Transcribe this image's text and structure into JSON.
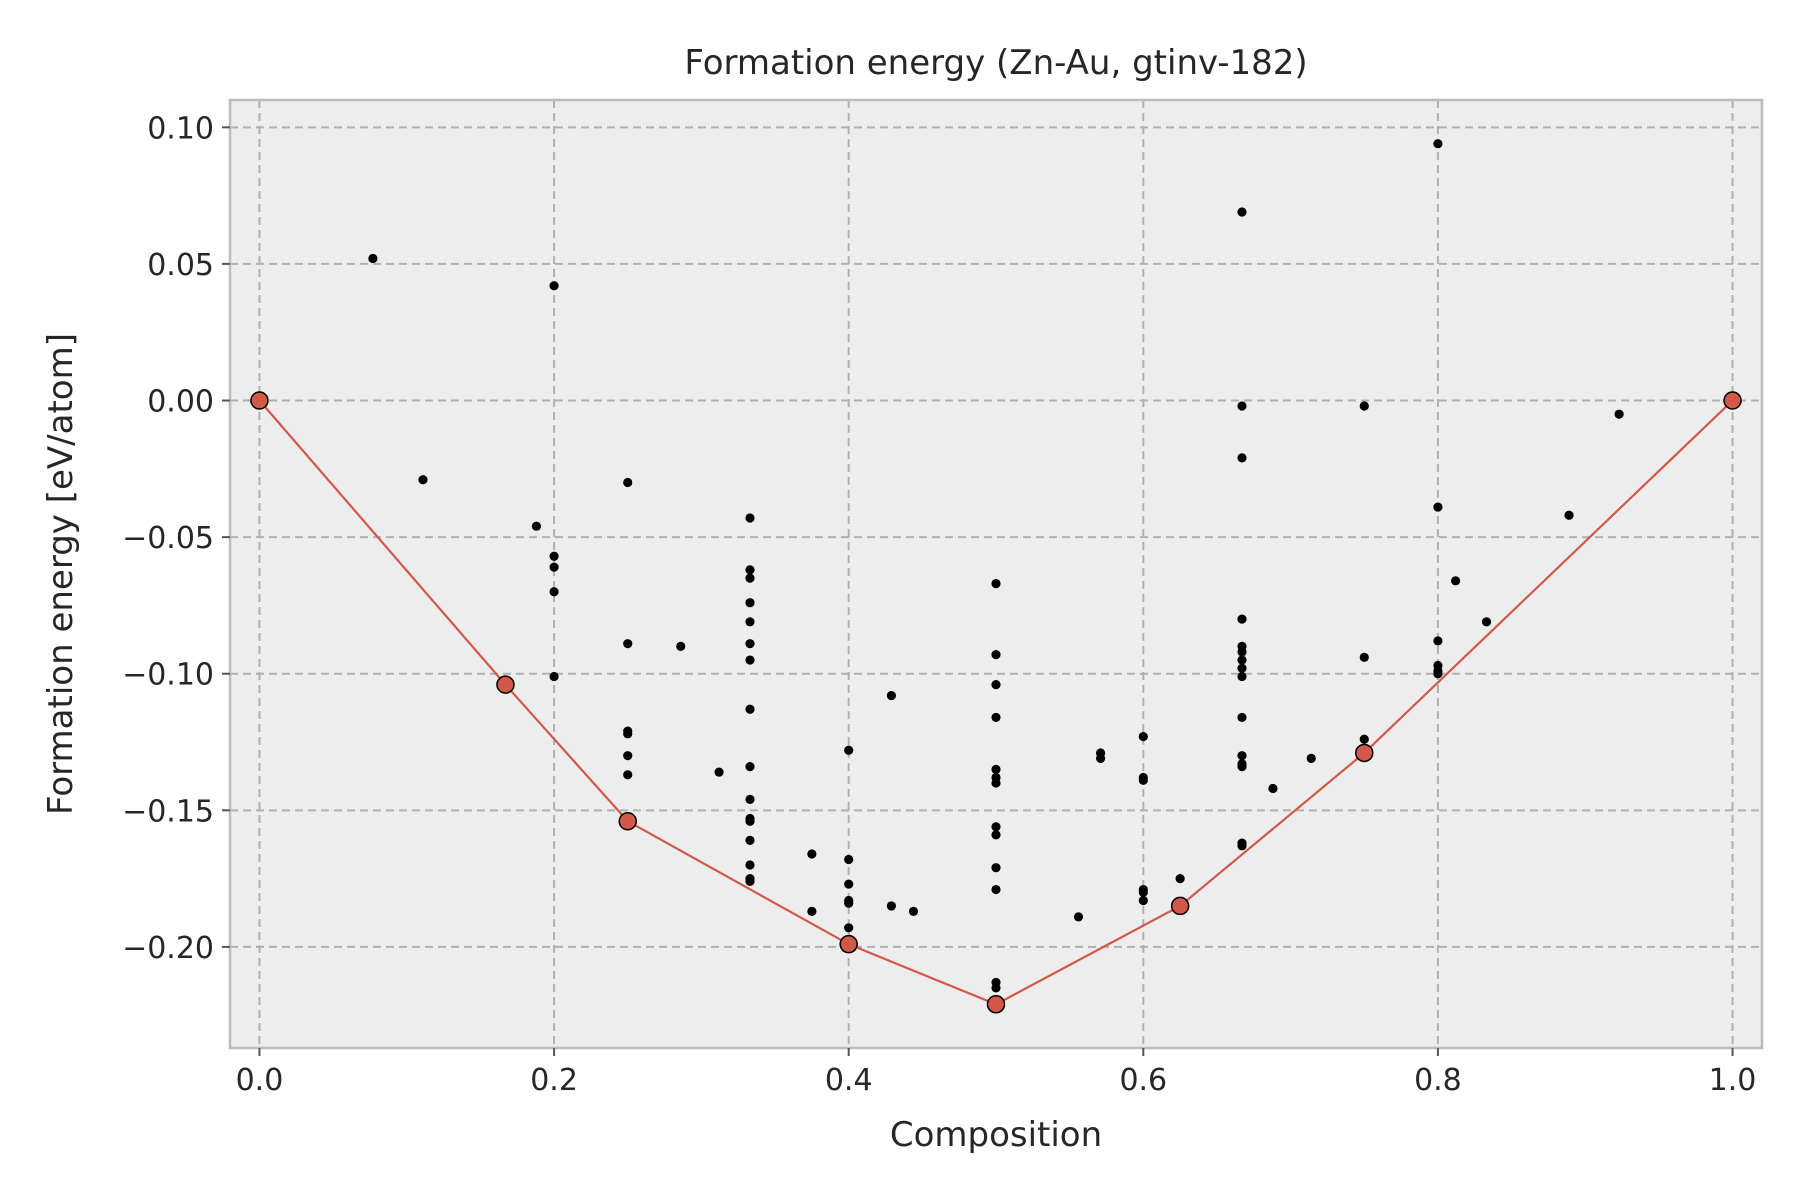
{
  "chart_data": {
    "type": "scatter",
    "title": "Formation energy (Zn-Au, gtinv-182)",
    "xlabel": "Composition",
    "ylabel": "Formation energy [eV/atom]",
    "xlim": [
      -0.02,
      1.02
    ],
    "ylim": [
      -0.237,
      0.11
    ],
    "grid": true,
    "xticks": [
      0.0,
      0.2,
      0.4,
      0.6,
      0.8,
      1.0
    ],
    "xtick_labels": [
      "0.0",
      "0.2",
      "0.4",
      "0.6",
      "0.8",
      "1.0"
    ],
    "yticks": [
      0.1,
      0.05,
      0.0,
      -0.05,
      -0.1,
      -0.15,
      -0.2
    ],
    "ytick_labels": [
      "0.10",
      "0.05",
      "0.00",
      "−0.05",
      "−0.10",
      "−0.15",
      "−0.20"
    ],
    "colors": {
      "plot_background": "#ededed",
      "frame": "#bcbcbc",
      "grid": "#b0b0b0",
      "points": "#000000",
      "hull": "#d2584a"
    },
    "series": [
      {
        "role": "structures",
        "points": [
          [
            0.077,
            0.052
          ],
          [
            0.111,
            -0.029
          ],
          [
            0.188,
            -0.046
          ],
          [
            0.2,
            0.042
          ],
          [
            0.2,
            -0.057
          ],
          [
            0.2,
            -0.061
          ],
          [
            0.2,
            -0.07
          ],
          [
            0.2,
            -0.101
          ],
          [
            0.25,
            -0.03
          ],
          [
            0.25,
            -0.089
          ],
          [
            0.25,
            -0.121
          ],
          [
            0.25,
            -0.122
          ],
          [
            0.25,
            -0.13
          ],
          [
            0.25,
            -0.137
          ],
          [
            0.286,
            -0.09
          ],
          [
            0.312,
            -0.136
          ],
          [
            0.333,
            -0.043
          ],
          [
            0.333,
            -0.062
          ],
          [
            0.333,
            -0.065
          ],
          [
            0.333,
            -0.074
          ],
          [
            0.333,
            -0.081
          ],
          [
            0.333,
            -0.089
          ],
          [
            0.333,
            -0.095
          ],
          [
            0.333,
            -0.113
          ],
          [
            0.333,
            -0.134
          ],
          [
            0.333,
            -0.146
          ],
          [
            0.333,
            -0.153
          ],
          [
            0.333,
            -0.154
          ],
          [
            0.333,
            -0.161
          ],
          [
            0.333,
            -0.17
          ],
          [
            0.333,
            -0.175
          ],
          [
            0.333,
            -0.176
          ],
          [
            0.375,
            -0.166
          ],
          [
            0.375,
            -0.187
          ],
          [
            0.4,
            -0.128
          ],
          [
            0.4,
            -0.168
          ],
          [
            0.4,
            -0.177
          ],
          [
            0.4,
            -0.183
          ],
          [
            0.4,
            -0.184
          ],
          [
            0.4,
            -0.193
          ],
          [
            0.429,
            -0.108
          ],
          [
            0.429,
            -0.185
          ],
          [
            0.444,
            -0.187
          ],
          [
            0.5,
            -0.067
          ],
          [
            0.5,
            -0.093
          ],
          [
            0.5,
            -0.104
          ],
          [
            0.5,
            -0.116
          ],
          [
            0.5,
            -0.135
          ],
          [
            0.5,
            -0.138
          ],
          [
            0.5,
            -0.14
          ],
          [
            0.5,
            -0.156
          ],
          [
            0.5,
            -0.159
          ],
          [
            0.5,
            -0.171
          ],
          [
            0.5,
            -0.179
          ],
          [
            0.5,
            -0.213
          ],
          [
            0.5,
            -0.215
          ],
          [
            0.556,
            -0.189
          ],
          [
            0.571,
            -0.129
          ],
          [
            0.571,
            -0.131
          ],
          [
            0.6,
            -0.123
          ],
          [
            0.6,
            -0.138
          ],
          [
            0.6,
            -0.139
          ],
          [
            0.6,
            -0.179
          ],
          [
            0.6,
            -0.18
          ],
          [
            0.6,
            -0.183
          ],
          [
            0.625,
            -0.175
          ],
          [
            0.667,
            0.069
          ],
          [
            0.667,
            -0.002
          ],
          [
            0.667,
            -0.021
          ],
          [
            0.667,
            -0.08
          ],
          [
            0.667,
            -0.09
          ],
          [
            0.667,
            -0.092
          ],
          [
            0.667,
            -0.095
          ],
          [
            0.667,
            -0.098
          ],
          [
            0.667,
            -0.101
          ],
          [
            0.667,
            -0.116
          ],
          [
            0.667,
            -0.13
          ],
          [
            0.667,
            -0.133
          ],
          [
            0.667,
            -0.134
          ],
          [
            0.667,
            -0.162
          ],
          [
            0.667,
            -0.163
          ],
          [
            0.688,
            -0.142
          ],
          [
            0.714,
            -0.131
          ],
          [
            0.75,
            -0.002
          ],
          [
            0.75,
            -0.094
          ],
          [
            0.75,
            -0.124
          ],
          [
            0.8,
            0.094
          ],
          [
            0.8,
            -0.039
          ],
          [
            0.8,
            -0.088
          ],
          [
            0.8,
            -0.097
          ],
          [
            0.8,
            -0.099
          ],
          [
            0.8,
            -0.1
          ],
          [
            0.812,
            -0.066
          ],
          [
            0.833,
            -0.081
          ],
          [
            0.889,
            -0.042
          ],
          [
            0.923,
            -0.005
          ]
        ]
      },
      {
        "role": "convex hull",
        "points": [
          [
            0.0,
            0.0
          ],
          [
            0.167,
            -0.104
          ],
          [
            0.25,
            -0.154
          ],
          [
            0.4,
            -0.199
          ],
          [
            0.5,
            -0.221
          ],
          [
            0.625,
            -0.185
          ],
          [
            0.75,
            -0.129
          ],
          [
            1.0,
            0.0
          ]
        ]
      }
    ]
  }
}
